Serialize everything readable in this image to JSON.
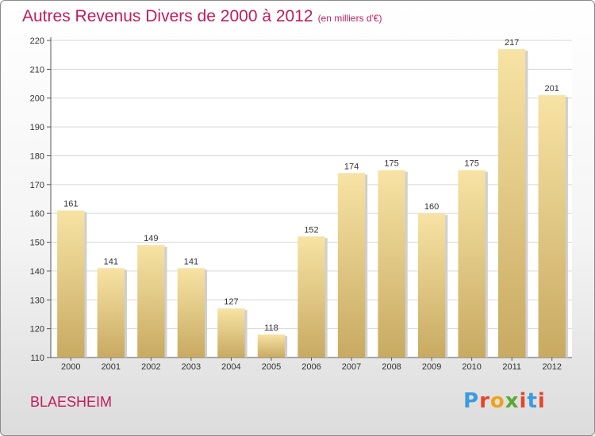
{
  "header": {
    "title": "Autres Revenus Divers de 2000 à 2012",
    "subtitle": "(en milliers d'€)"
  },
  "footer": {
    "location": "BLAESHEIM",
    "logo_text": "Proxiti"
  },
  "colors": {
    "accent": "#c21c5b",
    "bar_light": "#f7e3a4",
    "bar_dark": "#c8aa62",
    "grid": "#d7d7d7",
    "logo": [
      "#3b9be0",
      "#e6452b",
      "#f0a21f",
      "#5aa832",
      "#e6452b",
      "#3b9be0",
      "#e6452b"
    ]
  },
  "chart_data": {
    "type": "bar",
    "title": "Autres Revenus Divers de 2000 à 2012",
    "subtitle": "(en milliers d'€)",
    "categories": [
      "2000",
      "2001",
      "2002",
      "2003",
      "2004",
      "2005",
      "2006",
      "2007",
      "2008",
      "2009",
      "2010",
      "2011",
      "2012"
    ],
    "values": [
      161,
      141,
      149,
      141,
      127,
      118,
      152,
      174,
      175,
      160,
      175,
      217,
      201
    ],
    "ylim": [
      110,
      220
    ],
    "yticks": [
      110,
      120,
      130,
      140,
      150,
      160,
      170,
      180,
      190,
      200,
      210,
      220
    ],
    "grid": true
  }
}
